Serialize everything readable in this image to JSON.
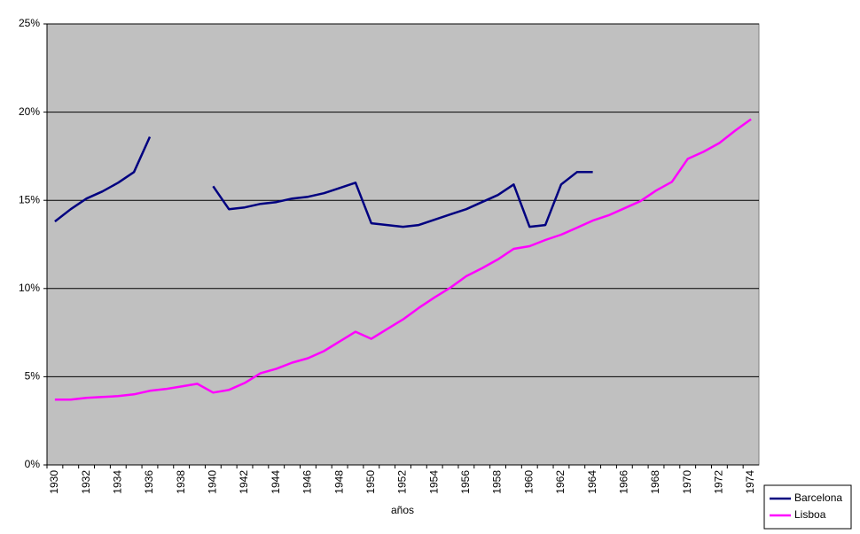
{
  "chart_data": {
    "type": "line",
    "x_label": "años",
    "categories": [
      "1930",
      null,
      "1932",
      null,
      "1934",
      null,
      "1936",
      null,
      "1938",
      null,
      "1940",
      null,
      "1942",
      null,
      "1944",
      null,
      "1946",
      null,
      "1948",
      null,
      "1950",
      null,
      "1952",
      null,
      "1954",
      null,
      "1956",
      null,
      "1958",
      null,
      "1960",
      null,
      "1962",
      null,
      "1964",
      null,
      "1966",
      null,
      "1968",
      null,
      "1970",
      null,
      "1972",
      null,
      "1974"
    ],
    "series": [
      {
        "name": "Barcelona",
        "color": "#000080",
        "values": [
          13.8,
          14.5,
          15.1,
          15.5,
          16.0,
          16.6,
          18.6,
          null,
          null,
          null,
          15.8,
          14.5,
          14.6,
          14.8,
          14.9,
          15.1,
          15.2,
          15.4,
          15.7,
          16.0,
          13.7,
          13.6,
          13.5,
          13.6,
          13.9,
          14.2,
          14.5,
          14.9,
          15.3,
          15.9,
          13.5,
          13.6,
          15.9,
          16.6,
          16.6,
          null,
          null,
          null,
          null,
          null,
          null,
          null,
          null,
          null,
          null
        ]
      },
      {
        "name": "Lisboa",
        "color": "#ff00ff",
        "values": [
          3.7,
          3.7,
          3.8,
          3.85,
          3.9,
          4.0,
          4.2,
          4.3,
          4.45,
          4.6,
          4.1,
          4.25,
          4.65,
          5.2,
          5.45,
          5.8,
          6.05,
          6.45,
          7.0,
          7.55,
          7.15,
          7.7,
          8.25,
          8.9,
          9.5,
          10.05,
          10.7,
          11.15,
          11.65,
          12.25,
          12.4,
          12.75,
          13.05,
          13.45,
          13.85,
          14.15,
          14.55,
          14.95,
          15.55,
          16.05,
          17.35,
          17.75,
          18.25,
          18.95,
          19.6
        ]
      }
    ],
    "ylim": [
      0,
      25
    ],
    "yticks": [
      {
        "value": 0,
        "label": "0%"
      },
      {
        "value": 5,
        "label": "5%"
      },
      {
        "value": 10,
        "label": "10%"
      },
      {
        "value": 15,
        "label": "15%"
      },
      {
        "value": 20,
        "label": "20%"
      },
      {
        "value": 25,
        "label": "25%"
      }
    ],
    "grid": true,
    "legend": "bottom-right"
  }
}
